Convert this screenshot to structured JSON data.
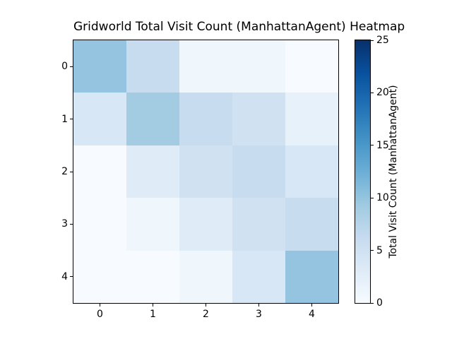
{
  "chart_data": {
    "type": "heatmap",
    "title": "Gridworld Total Visit Count (ManhattanAgent) Heatmap",
    "x_tick_labels": [
      "0",
      "1",
      "2",
      "3",
      "4"
    ],
    "y_tick_labels": [
      "0",
      "1",
      "2",
      "3",
      "4"
    ],
    "values": [
      [
        10,
        6,
        1,
        1,
        0
      ],
      [
        4,
        9,
        6,
        5,
        2
      ],
      [
        0,
        3,
        5,
        6,
        4
      ],
      [
        0,
        1,
        3,
        5,
        6
      ],
      [
        0,
        0,
        1,
        4,
        10
      ]
    ],
    "vmin": 0,
    "vmax": 25,
    "colormap": "Blues",
    "colorbar": {
      "label": "Total Visit Count (ManhattanAgent)",
      "tick_labels": [
        "0",
        "5",
        "10",
        "15",
        "20",
        "25"
      ],
      "tick_values": [
        0,
        5,
        10,
        15,
        20,
        25
      ]
    },
    "layout": {
      "grid": false,
      "legend": "none",
      "colorbar_position": "right"
    }
  },
  "colors": {
    "background": "#ffffff",
    "text": "#000000",
    "spine": "#000000",
    "colormap_anchors": [
      {
        "t": 0.0,
        "color": "#f7fbff"
      },
      {
        "t": 0.125,
        "color": "#deebf7"
      },
      {
        "t": 0.25,
        "color": "#c6dbef"
      },
      {
        "t": 0.375,
        "color": "#9ecae1"
      },
      {
        "t": 0.5,
        "color": "#6baed6"
      },
      {
        "t": 0.625,
        "color": "#4292c6"
      },
      {
        "t": 0.75,
        "color": "#2171b5"
      },
      {
        "t": 0.875,
        "color": "#08519e"
      },
      {
        "t": 1.0,
        "color": "#08306b"
      }
    ]
  }
}
